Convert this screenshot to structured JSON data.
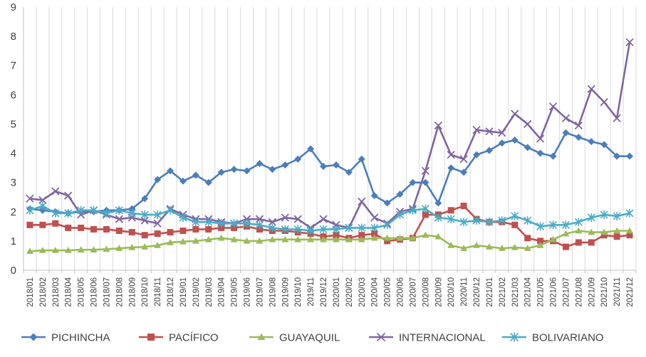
{
  "chart_data": {
    "type": "line",
    "title": "",
    "xlabel": "",
    "ylabel": "",
    "ylim": [
      0,
      9
    ],
    "yticks": [
      0,
      1,
      2,
      3,
      4,
      5,
      6,
      7,
      8,
      9
    ],
    "grid": "vertical",
    "legend_position": "bottom",
    "x": [
      "2018/01",
      "2018/02",
      "2018/03",
      "2018/04",
      "2018/05",
      "2018/06",
      "2018/07",
      "2018/08",
      "2018/09",
      "2018/10",
      "2018/11",
      "2018/12",
      "2019/01",
      "2019/02",
      "2019/03",
      "2019/04",
      "2019/05",
      "2019/06",
      "2019/07",
      "2019/08",
      "2019/09",
      "2019/10",
      "2019/11",
      "2019/12",
      "2020/01",
      "2020/02",
      "2020/03",
      "2020/04",
      "2020/05",
      "2020/06",
      "2020/07",
      "2020/08",
      "2020/09",
      "2020/10",
      "2020/11",
      "2020/12",
      "2021/01",
      "2021/02",
      "2021/03",
      "2021/04",
      "2021/05",
      "2021/06",
      "2021/07",
      "2021/08",
      "2021/09",
      "2021/10",
      "2021/11",
      "2021/12"
    ],
    "series": [
      {
        "name": "PICHINCHA",
        "color": "#4a7ebb",
        "marker": "diamond",
        "values": [
          2.1,
          2.05,
          2.0,
          1.95,
          2.0,
          2.0,
          2.05,
          2.05,
          2.1,
          2.45,
          3.1,
          3.4,
          3.05,
          3.25,
          3.0,
          3.35,
          3.45,
          3.4,
          3.65,
          3.45,
          3.6,
          3.8,
          4.15,
          3.55,
          3.6,
          3.35,
          3.8,
          2.55,
          2.3,
          2.6,
          3.0,
          3.0,
          2.3,
          3.5,
          3.35,
          3.95,
          4.1,
          4.35,
          4.45,
          4.2,
          4.0,
          3.9,
          4.7,
          4.55,
          4.4,
          4.3,
          3.9,
          3.9
        ]
      },
      {
        "name": "PACÍFICO",
        "color": "#c0504d",
        "marker": "square",
        "values": [
          1.55,
          1.55,
          1.6,
          1.45,
          1.45,
          1.4,
          1.4,
          1.35,
          1.3,
          1.2,
          1.25,
          1.3,
          1.35,
          1.4,
          1.4,
          1.45,
          1.45,
          1.5,
          1.4,
          1.35,
          1.35,
          1.3,
          1.25,
          1.15,
          1.2,
          1.1,
          1.2,
          1.25,
          1.0,
          1.05,
          1.1,
          1.9,
          1.9,
          2.05,
          2.2,
          1.75,
          1.65,
          1.65,
          1.55,
          1.1,
          1.0,
          1.0,
          0.8,
          0.95,
          0.95,
          1.2,
          1.15,
          1.2
        ]
      },
      {
        "name": "GUAYAQUIL",
        "color": "#9bbb59",
        "marker": "triangle",
        "values": [
          0.65,
          0.68,
          0.68,
          0.68,
          0.7,
          0.7,
          0.72,
          0.75,
          0.78,
          0.8,
          0.85,
          0.95,
          0.98,
          1.0,
          1.05,
          1.1,
          1.05,
          1.0,
          1.0,
          1.05,
          1.05,
          1.05,
          1.05,
          1.05,
          1.05,
          1.05,
          1.05,
          1.1,
          1.1,
          1.1,
          1.1,
          1.2,
          1.15,
          0.85,
          0.75,
          0.85,
          0.8,
          0.75,
          0.78,
          0.75,
          0.85,
          1.05,
          1.25,
          1.35,
          1.3,
          1.3,
          1.35,
          1.35
        ]
      },
      {
        "name": "INTERNACIONAL",
        "color": "#8064a2",
        "marker": "x",
        "values": [
          2.45,
          2.4,
          2.7,
          2.55,
          1.9,
          2.05,
          1.9,
          1.75,
          1.8,
          1.7,
          1.6,
          2.1,
          1.9,
          1.75,
          1.75,
          1.65,
          1.6,
          1.75,
          1.75,
          1.65,
          1.8,
          1.75,
          1.45,
          1.75,
          1.55,
          1.45,
          2.35,
          1.8,
          1.6,
          2.0,
          2.1,
          3.4,
          4.95,
          3.95,
          3.8,
          4.8,
          4.75,
          4.7,
          5.35,
          5.0,
          4.5,
          5.6,
          5.2,
          4.95,
          6.2,
          5.75,
          5.2,
          7.8
        ]
      },
      {
        "name": "BOLIVARIANO",
        "color": "#4bacc6",
        "marker": "asterisk",
        "values": [
          2.05,
          2.2,
          1.95,
          1.95,
          2.05,
          2.05,
          1.95,
          2.05,
          1.95,
          1.9,
          1.9,
          2.05,
          1.8,
          1.65,
          1.65,
          1.6,
          1.6,
          1.6,
          1.55,
          1.45,
          1.4,
          1.4,
          1.35,
          1.4,
          1.4,
          1.45,
          1.45,
          1.45,
          1.55,
          1.9,
          2.05,
          2.1,
          1.8,
          1.75,
          1.65,
          1.7,
          1.65,
          1.7,
          1.85,
          1.7,
          1.5,
          1.55,
          1.55,
          1.65,
          1.8,
          1.9,
          1.85,
          1.95
        ]
      }
    ]
  }
}
